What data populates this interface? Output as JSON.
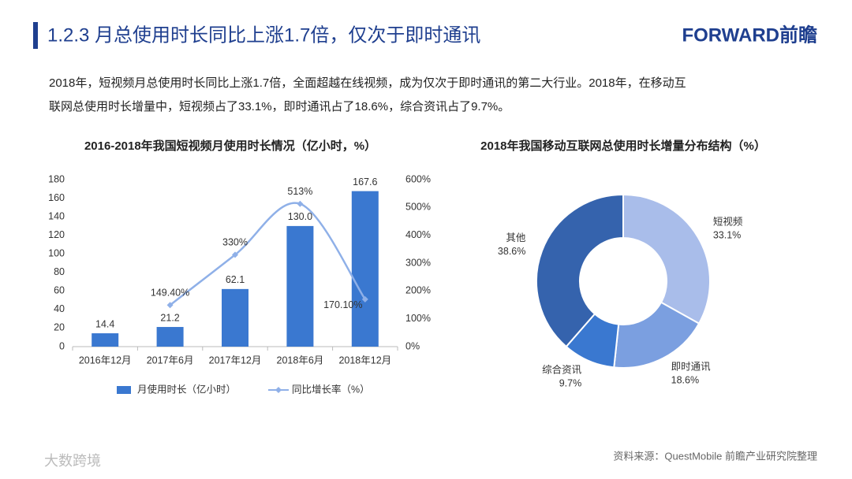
{
  "header": {
    "title": "1.2.3 月总使用时长同比上涨1.7倍，仅次于即时通讯",
    "logo": "FORWARD前瞻"
  },
  "paragraph": [
    "2018年，短视频月总使用时长同比上涨1.7倍，全面超越在线视频，成为仅次于即时通讯的第二大行业。2018年，在移动互",
    "联网总使用时长增量中，短视频占了33.1%，即时通讯占了18.6%，综合资讯占了9.7%。"
  ],
  "chart_data": [
    {
      "type": "bar",
      "title": "2016-2018年我国短视频月使用时长情况（亿小时，%）",
      "categories": [
        "2016年12月",
        "2017年6月",
        "2017年12月",
        "2018年6月",
        "2018年12月"
      ],
      "series": [
        {
          "name": "月使用时长（亿小时）",
          "type": "bar",
          "color": "#3a78d0",
          "values": [
            14.4,
            21.2,
            62.1,
            130,
            167.6
          ],
          "value_labels": [
            "14.4",
            "21.2",
            "62.1",
            "130.0",
            "167.6"
          ]
        },
        {
          "name": "同比增长率（%）",
          "type": "line",
          "axis": "y2",
          "color": "#8fb0e8",
          "values": [
            null,
            149.4,
            330,
            513,
            170.1
          ],
          "value_labels": [
            null,
            "149.40%",
            "330%",
            "513%",
            "170.10%"
          ]
        }
      ],
      "ylim": [
        0,
        180
      ],
      "yticks": [
        0,
        20,
        40,
        60,
        80,
        100,
        120,
        140,
        160,
        180
      ],
      "y2lim": [
        0,
        600
      ],
      "y2ticks": [
        {
          "value": 0,
          "label": "0%"
        },
        {
          "value": 100,
          "label": "100%"
        },
        {
          "value": 200,
          "label": "200%"
        },
        {
          "value": 300,
          "label": "300%"
        },
        {
          "value": 400,
          "label": "400%"
        },
        {
          "value": 500,
          "label": "500%"
        },
        {
          "value": 600,
          "label": "600%"
        }
      ],
      "legend": "bottom"
    },
    {
      "type": "donut",
      "title": "2018年我国移动互联网总使用时长增量分布结构（%）",
      "categories": [
        "短视频",
        "即时通讯",
        "综合资讯",
        "其他"
      ],
      "values": [
        33.1,
        18.6,
        9.7,
        38.6
      ],
      "value_labels": [
        "33.1%",
        "18.6%",
        "9.7%",
        "38.6%"
      ],
      "colors": [
        "#a9bdea",
        "#7b9fe0",
        "#3a78d0",
        "#3563ad"
      ]
    }
  ],
  "source": "资料来源：QuestMobile 前瞻产业研究院整理",
  "watermark": "大数跨境"
}
